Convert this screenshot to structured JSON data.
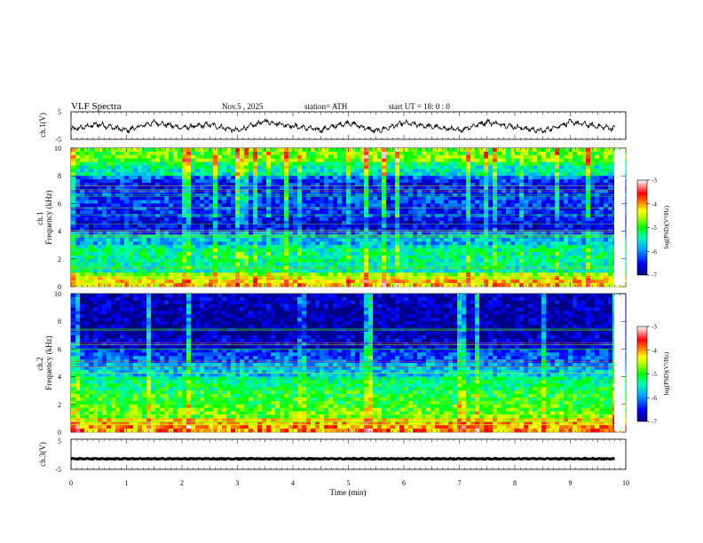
{
  "header": {
    "title": "VLF  Spectra",
    "date": "Nov.5  , 2025",
    "station": "station= ATH",
    "start": "start  UT  =    18: 0   : 0"
  },
  "colors": {
    "spectrum": [
      "#000080",
      "#0000ff",
      "#00aaff",
      "#00ffaa",
      "#00ff00",
      "#aaff00",
      "#ffff00",
      "#ff8800",
      "#ff0000",
      "#ffffff"
    ]
  },
  "chart_data": [
    {
      "type": "line",
      "panel": "ch1-waveform",
      "ylabel": "ch.1(V)",
      "ylim": [
        -5,
        5
      ],
      "yticks": [
        "5",
        "-5"
      ],
      "x": [
        0,
        0.5,
        1,
        1.5,
        2,
        2.5,
        3,
        3.5,
        4,
        4.5,
        5,
        5.5,
        6,
        6.5,
        7,
        7.5,
        8,
        8.5,
        9,
        9.5,
        9.8
      ],
      "values": [
        -1.5,
        0.5,
        -1.8,
        1.2,
        -0.8,
        0.3,
        -1.9,
        1.6,
        -0.2,
        -1.6,
        1.1,
        -2.1,
        0.9,
        -0.4,
        -1.7,
        1.4,
        -0.5,
        -2.0,
        1.2,
        -0.3,
        -1.1
      ]
    },
    {
      "type": "heatmap",
      "panel": "ch1-spectrogram",
      "ylabel": "ch.1\nFrequency  (kHz)",
      "ylim": [
        0,
        10
      ],
      "yticks": [
        "0",
        "2",
        "4",
        "6",
        "8",
        "10"
      ],
      "colorbar": {
        "label": "log(PSD)(V²/Hz)",
        "range": [
          -7,
          -3
        ],
        "ticks": [
          "-3",
          "-4",
          "-5",
          "-6",
          "-7"
        ]
      },
      "freq_kHz": [
        0.5,
        1.5,
        2.5,
        3.5,
        4.5,
        5.5,
        6.5,
        7.5,
        8.5,
        9.5
      ],
      "level": [
        -4.2,
        -5.4,
        -5.3,
        -5.8,
        -6.6,
        -6.4,
        -6.3,
        -6.5,
        -5.5,
        -4.8
      ]
    },
    {
      "type": "heatmap",
      "panel": "ch2-spectrogram",
      "ylabel": "ch.2\nFrequency  (kHz)",
      "ylim": [
        0,
        10
      ],
      "yticks": [
        "0",
        "2",
        "4",
        "6",
        "8",
        "10"
      ],
      "colorbar": {
        "label": "log(PSD)(V²/Hz)",
        "range": [
          -7,
          -3
        ],
        "ticks": [
          "-3",
          "-4",
          "-5",
          "-6",
          "-7"
        ]
      },
      "freq_kHz": [
        0.5,
        1.5,
        2.5,
        3.5,
        4.5,
        5.5,
        6.5,
        7.5,
        8.5,
        9.5
      ],
      "level": [
        -4.0,
        -4.8,
        -5.0,
        -5.2,
        -5.7,
        -6.2,
        -6.7,
        -6.9,
        -6.9,
        -6.8
      ]
    },
    {
      "type": "line",
      "panel": "ch3-waveform",
      "ylabel": "ch.3(V)",
      "ylim": [
        -5,
        5
      ],
      "yticks": [
        "5",
        "-5"
      ],
      "x": [
        0,
        2,
        4,
        6,
        8,
        9.8
      ],
      "values": [
        -1.5,
        -1.5,
        -1.5,
        -1.5,
        -1.5,
        -1.5
      ]
    }
  ],
  "xaxis": {
    "label": "Time  (min)",
    "range": [
      0,
      10
    ],
    "ticks": [
      "0",
      "1",
      "2",
      "3",
      "4",
      "5",
      "6",
      "7",
      "8",
      "9",
      "10"
    ]
  }
}
